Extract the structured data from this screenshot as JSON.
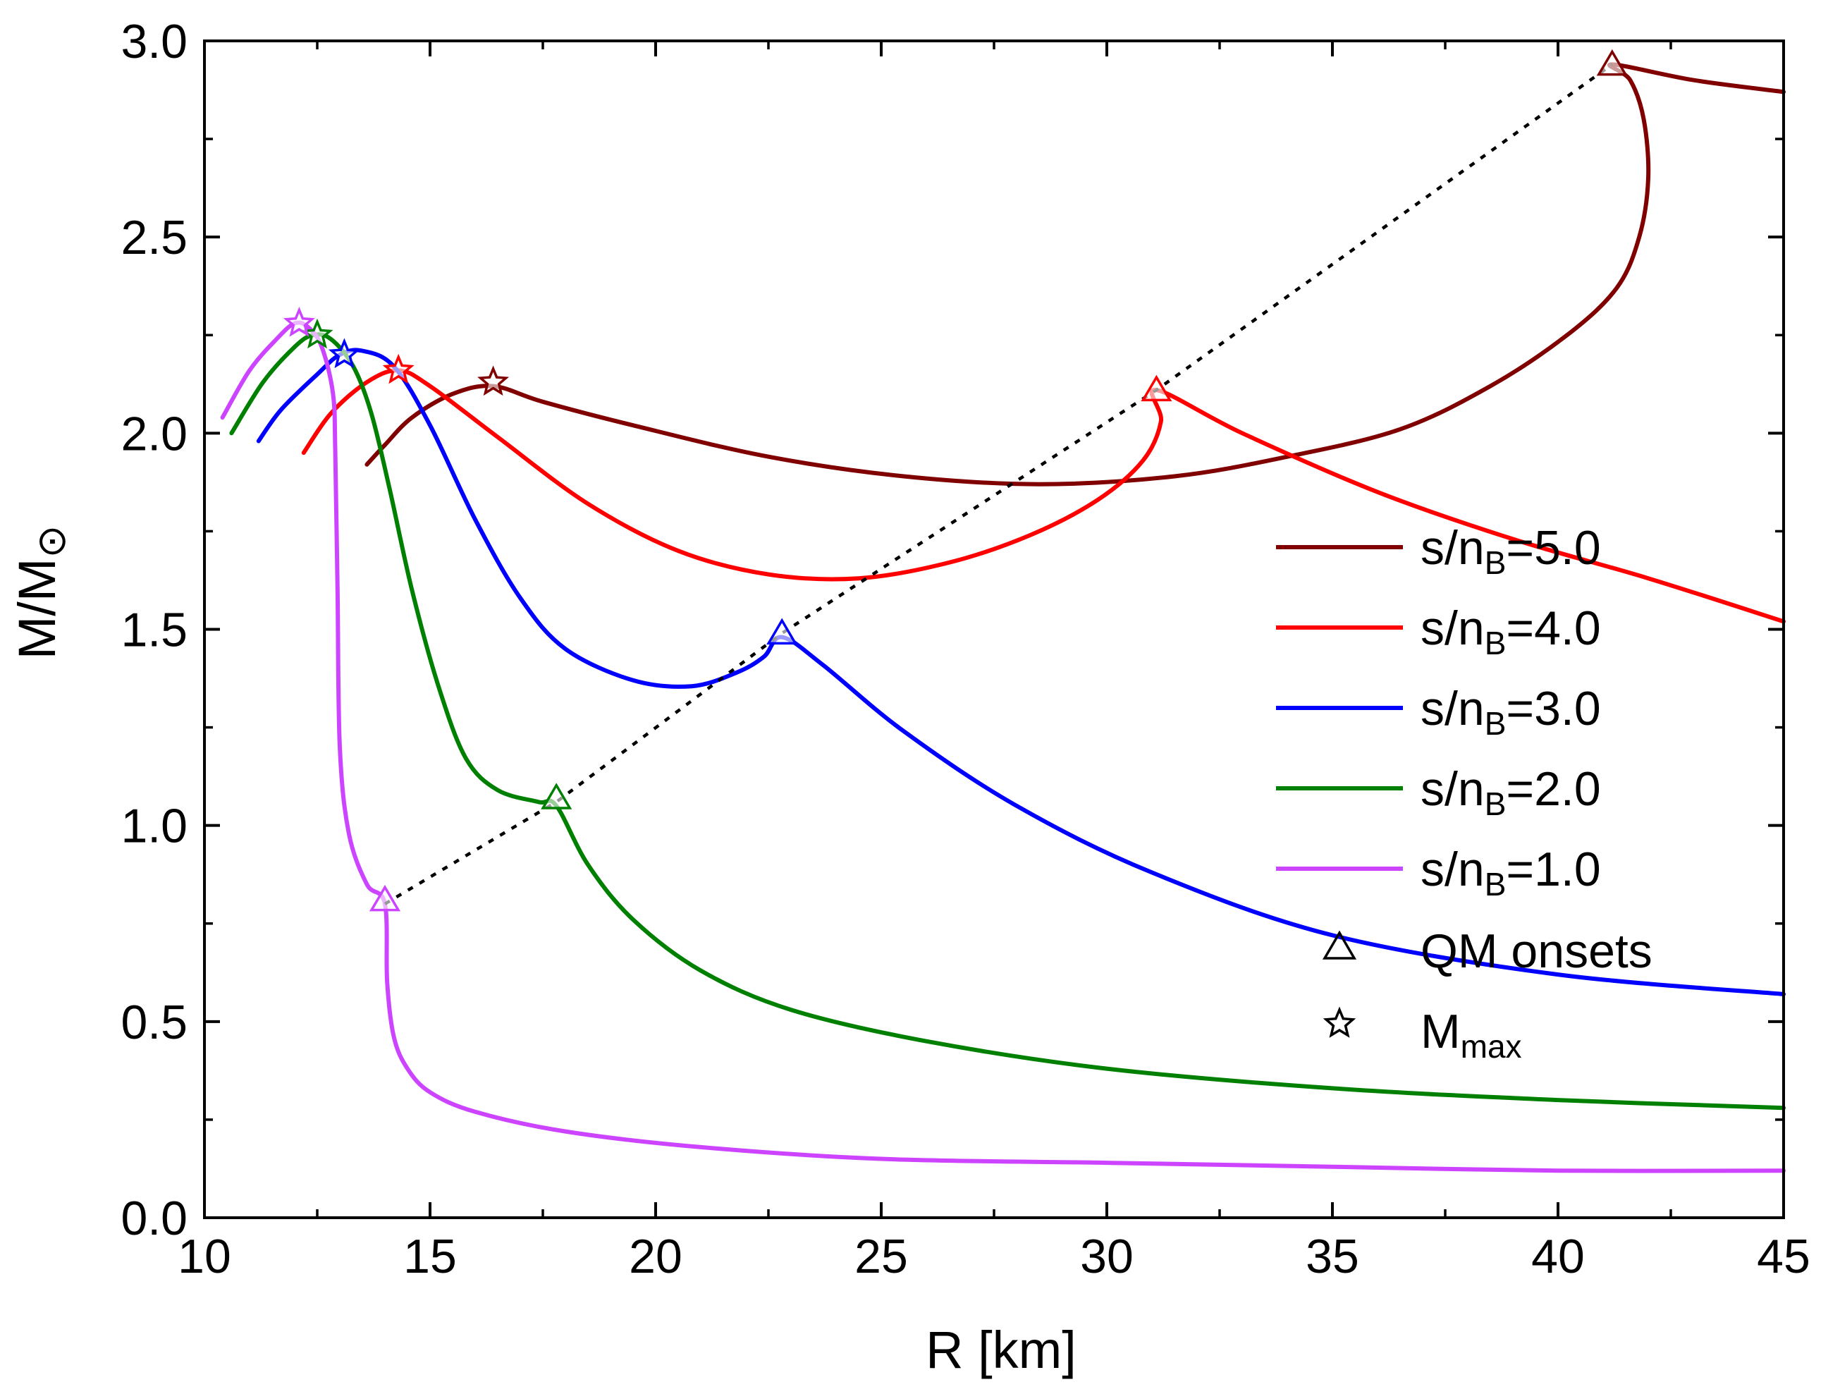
{
  "chart_data": {
    "type": "line",
    "xlabel": "R [km]",
    "ylabel": "M/M",
    "ylabel_symbol": "⊙",
    "xlim": [
      10,
      45
    ],
    "ylim": [
      0,
      3.0
    ],
    "x_ticks": [
      "10",
      "15",
      "20",
      "25",
      "30",
      "35",
      "40",
      "45"
    ],
    "y_ticks": [
      "0.0",
      "0.5",
      "1.0",
      "1.5",
      "2.0",
      "2.5",
      "3.0"
    ],
    "grid": false,
    "legend_position": "right",
    "series": [
      {
        "name": "s/nB=5.0",
        "label_prefix": "s/n",
        "label_sub": "B",
        "label_suffix": "=5.0",
        "color": "#800000",
        "points": [
          [
            45,
            2.87
          ],
          [
            43,
            2.9
          ],
          [
            41.2,
            2.94
          ],
          [
            41.6,
            2.9
          ],
          [
            41.9,
            2.8
          ],
          [
            42.0,
            2.65
          ],
          [
            41.8,
            2.5
          ],
          [
            41.3,
            2.37
          ],
          [
            40.2,
            2.25
          ],
          [
            38.5,
            2.12
          ],
          [
            36.5,
            2.01
          ],
          [
            34.0,
            1.94
          ],
          [
            31.5,
            1.89
          ],
          [
            28.5,
            1.87
          ],
          [
            25.5,
            1.89
          ],
          [
            22.5,
            1.94
          ],
          [
            19.5,
            2.02
          ],
          [
            17.5,
            2.08
          ],
          [
            16.4,
            2.12
          ],
          [
            15.5,
            2.1
          ],
          [
            14.6,
            2.04
          ],
          [
            14.0,
            1.97
          ],
          [
            13.6,
            1.92
          ]
        ],
        "onset": [
          41.2,
          2.94
        ],
        "mmax": [
          16.4,
          2.13
        ]
      },
      {
        "name": "s/nB=4.0",
        "label_prefix": "s/n",
        "label_sub": "B",
        "label_suffix": "=4.0",
        "color": "#ff0000",
        "points": [
          [
            45,
            1.52
          ],
          [
            42,
            1.63
          ],
          [
            39,
            1.73
          ],
          [
            36,
            1.85
          ],
          [
            33,
            2.0
          ],
          [
            31.1,
            2.11
          ],
          [
            31.2,
            2.03
          ],
          [
            30.8,
            1.93
          ],
          [
            29.8,
            1.83
          ],
          [
            28.3,
            1.74
          ],
          [
            26.5,
            1.67
          ],
          [
            24.5,
            1.63
          ],
          [
            22.5,
            1.64
          ],
          [
            20.5,
            1.7
          ],
          [
            18.5,
            1.82
          ],
          [
            16.5,
            1.99
          ],
          [
            15.0,
            2.12
          ],
          [
            14.3,
            2.16
          ],
          [
            13.6,
            2.13
          ],
          [
            12.8,
            2.05
          ],
          [
            12.2,
            1.95
          ]
        ],
        "onset": [
          31.1,
          2.11
        ],
        "mmax": [
          14.3,
          2.16
        ]
      },
      {
        "name": "s/nB=3.0",
        "label_prefix": "s/n",
        "label_sub": "B",
        "label_suffix": "=3.0",
        "color": "#0000ff",
        "points": [
          [
            45,
            0.57
          ],
          [
            40,
            0.62
          ],
          [
            35,
            0.72
          ],
          [
            31,
            0.88
          ],
          [
            28,
            1.05
          ],
          [
            25.5,
            1.24
          ],
          [
            23.7,
            1.41
          ],
          [
            22.8,
            1.48
          ],
          [
            22.4,
            1.43
          ],
          [
            21.8,
            1.39
          ],
          [
            20.8,
            1.355
          ],
          [
            19.5,
            1.37
          ],
          [
            18,
            1.45
          ],
          [
            17,
            1.58
          ],
          [
            16,
            1.78
          ],
          [
            15,
            2.02
          ],
          [
            14.2,
            2.17
          ],
          [
            13.5,
            2.21
          ],
          [
            13.0,
            2.2
          ],
          [
            12.5,
            2.15
          ],
          [
            11.7,
            2.06
          ],
          [
            11.2,
            1.98
          ]
        ],
        "onset": [
          22.8,
          1.49
        ],
        "mmax": [
          13.1,
          2.2
        ]
      },
      {
        "name": "s/nB=2.0",
        "label_prefix": "s/n",
        "label_sub": "B",
        "label_suffix": "=2.0",
        "color": "#008000",
        "points": [
          [
            45,
            0.28
          ],
          [
            40,
            0.3
          ],
          [
            35,
            0.33
          ],
          [
            30,
            0.38
          ],
          [
            26,
            0.45
          ],
          [
            23,
            0.53
          ],
          [
            21,
            0.63
          ],
          [
            19.5,
            0.76
          ],
          [
            18.5,
            0.9
          ],
          [
            17.8,
            1.05
          ],
          [
            17.4,
            1.06
          ],
          [
            16.5,
            1.09
          ],
          [
            15.8,
            1.17
          ],
          [
            15.2,
            1.35
          ],
          [
            14.6,
            1.6
          ],
          [
            14.1,
            1.86
          ],
          [
            13.7,
            2.05
          ],
          [
            13.3,
            2.17
          ],
          [
            12.8,
            2.24
          ],
          [
            12.4,
            2.25
          ],
          [
            12.0,
            2.22
          ],
          [
            11.3,
            2.13
          ],
          [
            10.6,
            2.0
          ]
        ],
        "onset": [
          17.8,
          1.07
        ],
        "mmax": [
          12.5,
          2.25
        ]
      },
      {
        "name": "s/nB=1.0",
        "label_prefix": "s/n",
        "label_sub": "B",
        "label_suffix": "=1.0",
        "color": "#cc44ff",
        "points": [
          [
            45,
            0.12
          ],
          [
            40,
            0.12
          ],
          [
            35,
            0.13
          ],
          [
            30,
            0.14
          ],
          [
            25,
            0.15
          ],
          [
            21,
            0.18
          ],
          [
            18,
            0.22
          ],
          [
            16,
            0.27
          ],
          [
            15,
            0.32
          ],
          [
            14.5,
            0.38
          ],
          [
            14.2,
            0.46
          ],
          [
            14.05,
            0.6
          ],
          [
            14.0,
            0.8
          ],
          [
            13.6,
            0.85
          ],
          [
            13.2,
            0.98
          ],
          [
            13.0,
            1.2
          ],
          [
            12.95,
            1.6
          ],
          [
            12.9,
            1.95
          ],
          [
            12.85,
            2.1
          ],
          [
            12.6,
            2.22
          ],
          [
            12.3,
            2.27
          ],
          [
            12.0,
            2.28
          ],
          [
            11.6,
            2.24
          ],
          [
            11.0,
            2.16
          ],
          [
            10.4,
            2.04
          ]
        ],
        "onset": [
          14.0,
          0.81
        ],
        "mmax": [
          12.1,
          2.28
        ]
      }
    ],
    "onset_line": {
      "style": "dotted",
      "color": "#000000",
      "points": [
        [
          14.0,
          0.8
        ],
        [
          17.8,
          1.06
        ],
        [
          22.8,
          1.49
        ],
        [
          31.1,
          2.11
        ],
        [
          41.2,
          2.94
        ]
      ]
    },
    "legend": {
      "onsets_label": "QM onsets",
      "mmax_prefix": "M",
      "mmax_sub": "max"
    }
  }
}
